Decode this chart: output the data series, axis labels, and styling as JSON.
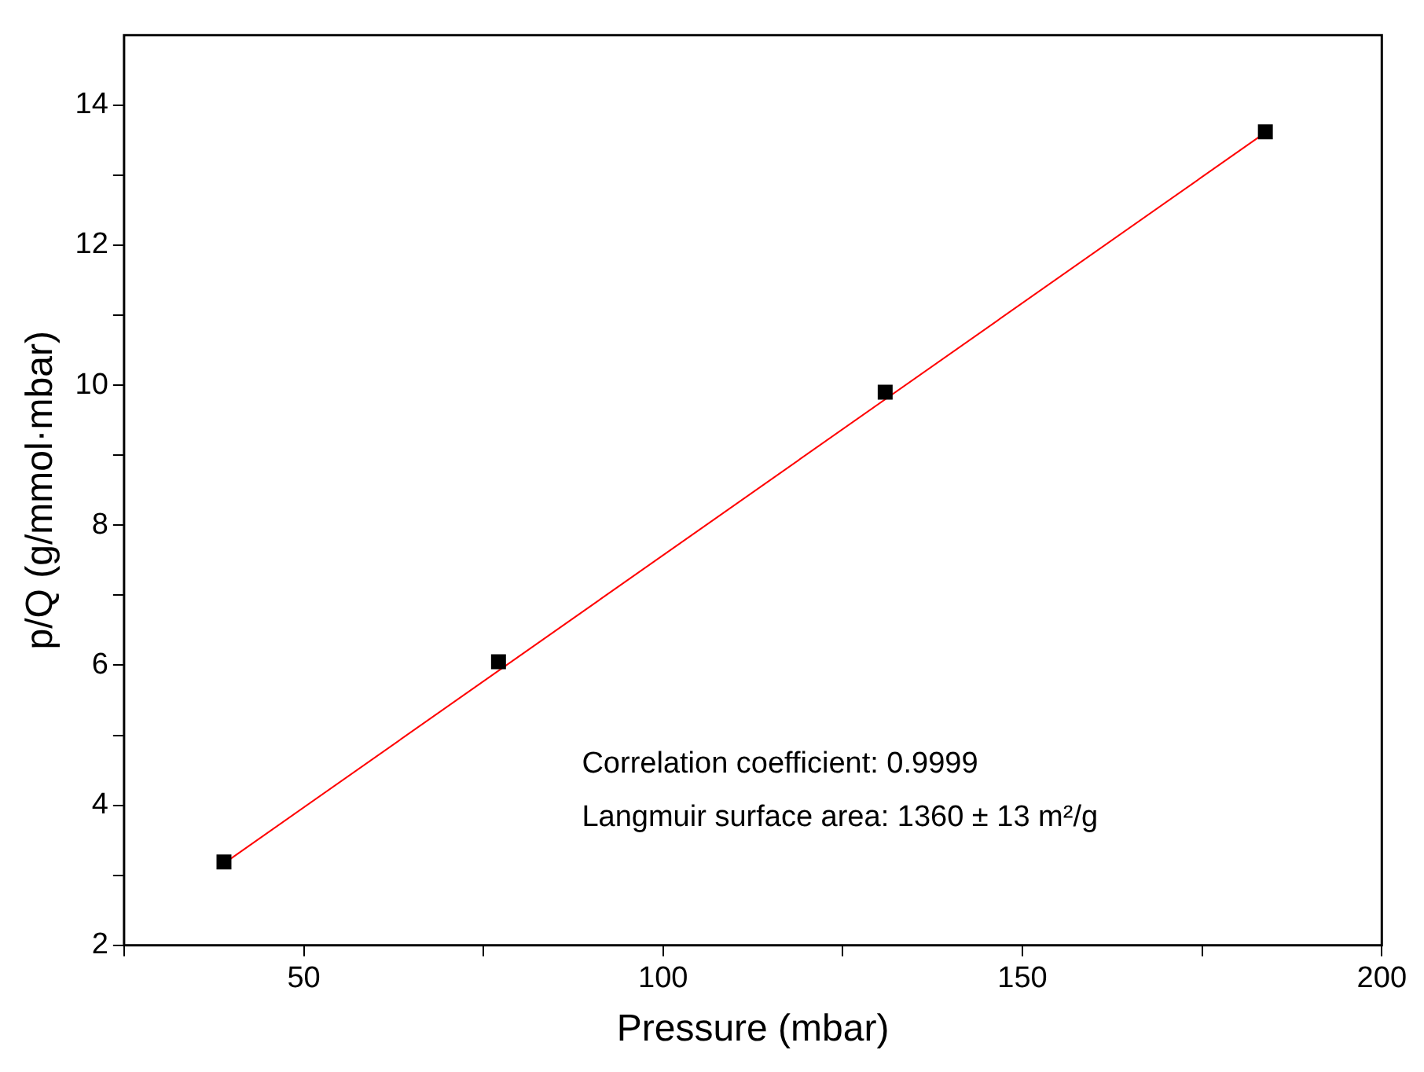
{
  "chart_data": {
    "type": "scatter",
    "xlabel": "Pressure (mbar)",
    "ylabel": "p/Q (g/mmol·mbar)",
    "xlim": [
      25,
      200
    ],
    "ylim": [
      2,
      15
    ],
    "xticks": [
      {
        "value": 25,
        "label": null
      },
      50,
      {
        "value": 75,
        "label": null
      },
      100,
      {
        "value": 125,
        "label": null
      },
      150,
      {
        "value": 175,
        "label": null
      },
      200
    ],
    "yticks": [
      2,
      {
        "value": 3,
        "label": null
      },
      4,
      {
        "value": 5,
        "label": null
      },
      6,
      {
        "value": 7,
        "label": null
      },
      8,
      {
        "value": 9,
        "label": null
      },
      10,
      {
        "value": 11,
        "label": null
      },
      12,
      {
        "value": 13,
        "label": null
      },
      14
    ],
    "series": [
      {
        "color": "#000000",
        "marker": "square",
        "x": [
          38.9,
          77.1,
          130.9,
          183.8
        ],
        "values": [
          3.19,
          6.05,
          9.9,
          13.62
        ]
      },
      {
        "type": "line",
        "color": "#ff0000",
        "marker": "none",
        "x": [
          38.9,
          183.8
        ],
        "values": [
          3.17,
          13.61
        ]
      }
    ],
    "grid": false,
    "legend": false,
    "annotations": [
      "Correlation coefficient: 0.9999",
      "Langmuir surface area: 1360 ± 13 m²/g"
    ]
  }
}
